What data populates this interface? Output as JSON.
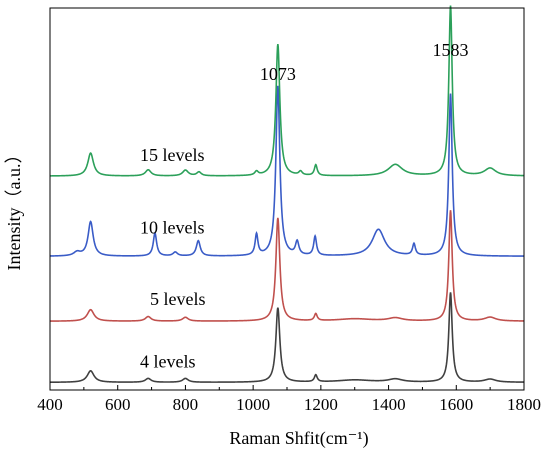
{
  "chart_data": {
    "type": "line",
    "title": "",
    "xlabel": "Raman Shfit(cm⁻¹)",
    "ylabel": "Intensity（a.u.）",
    "xlim": [
      400,
      1800
    ],
    "ylim": [
      0,
      100
    ],
    "x_ticks": [
      "400",
      "600",
      "800",
      "1000",
      "1200",
      "1400",
      "1600",
      "1800"
    ],
    "y_ticks_shown": false,
    "grid": false,
    "legend": "none",
    "annotations": [
      {
        "text": "1073",
        "x": 1073
      },
      {
        "text": "1583",
        "x": 1583
      }
    ],
    "series": [
      {
        "name": "4 levels",
        "color": "#404040",
        "baseline": 2,
        "peaks": [
          {
            "x": 520,
            "h": 3.0,
            "w": 12
          },
          {
            "x": 690,
            "h": 1.0,
            "w": 10
          },
          {
            "x": 800,
            "h": 1.0,
            "w": 10
          },
          {
            "x": 1073,
            "h": 19.5,
            "w": 7
          },
          {
            "x": 1185,
            "h": 1.8,
            "w": 5
          },
          {
            "x": 1300,
            "h": 0.6,
            "w": 60
          },
          {
            "x": 1420,
            "h": 0.8,
            "w": 25
          },
          {
            "x": 1583,
            "h": 23.5,
            "w": 6
          },
          {
            "x": 1700,
            "h": 0.8,
            "w": 20
          }
        ]
      },
      {
        "name": "5 levels",
        "color": "#c0504d",
        "baseline": 18,
        "peaks": [
          {
            "x": 520,
            "h": 3.0,
            "w": 12
          },
          {
            "x": 690,
            "h": 1.2,
            "w": 10
          },
          {
            "x": 800,
            "h": 1.0,
            "w": 10
          },
          {
            "x": 1073,
            "h": 27.0,
            "w": 7
          },
          {
            "x": 1185,
            "h": 1.8,
            "w": 5
          },
          {
            "x": 1300,
            "h": 0.6,
            "w": 60
          },
          {
            "x": 1420,
            "h": 0.8,
            "w": 25
          },
          {
            "x": 1583,
            "h": 29.0,
            "w": 6
          },
          {
            "x": 1700,
            "h": 1.0,
            "w": 20
          }
        ]
      },
      {
        "name": "10 levels",
        "color": "#3a5cc7",
        "baseline": 35,
        "peaks": [
          {
            "x": 480,
            "h": 1.0,
            "w": 12
          },
          {
            "x": 520,
            "h": 9.0,
            "w": 9
          },
          {
            "x": 710,
            "h": 6.0,
            "w": 6
          },
          {
            "x": 770,
            "h": 1.0,
            "w": 8
          },
          {
            "x": 838,
            "h": 4.0,
            "w": 7
          },
          {
            "x": 1010,
            "h": 5.5,
            "w": 5
          },
          {
            "x": 1073,
            "h": 44.5,
            "w": 7
          },
          {
            "x": 1130,
            "h": 3.5,
            "w": 6
          },
          {
            "x": 1183,
            "h": 5.0,
            "w": 5
          },
          {
            "x": 1370,
            "h": 7.0,
            "w": 22
          },
          {
            "x": 1475,
            "h": 3.0,
            "w": 5
          },
          {
            "x": 1583,
            "h": 42.5,
            "w": 6
          }
        ]
      },
      {
        "name": "15 levels",
        "color": "#2ca05a",
        "baseline": 56,
        "peaks": [
          {
            "x": 520,
            "h": 6.0,
            "w": 10
          },
          {
            "x": 690,
            "h": 1.6,
            "w": 10
          },
          {
            "x": 800,
            "h": 1.5,
            "w": 10
          },
          {
            "x": 840,
            "h": 1.0,
            "w": 8
          },
          {
            "x": 1010,
            "h": 1.0,
            "w": 6
          },
          {
            "x": 1073,
            "h": 34.5,
            "w": 7
          },
          {
            "x": 1140,
            "h": 1.0,
            "w": 6
          },
          {
            "x": 1185,
            "h": 2.8,
            "w": 5
          },
          {
            "x": 1420,
            "h": 3.0,
            "w": 25
          },
          {
            "x": 1583,
            "h": 44.5,
            "w": 6
          },
          {
            "x": 1700,
            "h": 2.0,
            "w": 20
          }
        ]
      }
    ]
  }
}
